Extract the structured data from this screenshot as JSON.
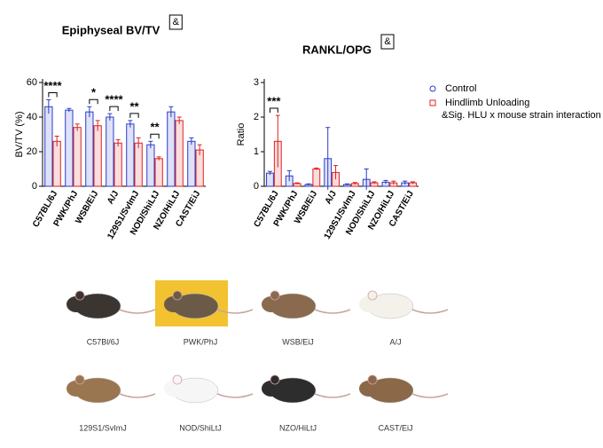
{
  "chart_data": [
    {
      "type": "bar",
      "title": "Epiphyseal BV/TV",
      "marker": "&",
      "y_label": "BV/TV (%)",
      "categories": [
        "C57BL/6J",
        "PWK/PhJ",
        "WSB/EiJ",
        "A/J",
        "129S1/SvImJ",
        "NOD/ShiLtJ",
        "NZO/HiLtJ",
        "CAST/EiJ"
      ],
      "series": [
        {
          "name": "Control",
          "color": "#2a3cc8",
          "values": [
            46,
            44,
            43,
            40,
            36,
            24,
            43,
            26
          ],
          "errors": [
            4,
            1,
            3,
            2,
            2,
            2,
            3,
            2
          ]
        },
        {
          "name": "Hindlimb Unloading",
          "color": "#e02020",
          "values": [
            26,
            34,
            35,
            25,
            25,
            16,
            38,
            21
          ],
          "errors": [
            3,
            2,
            3,
            2,
            3,
            1,
            2,
            3
          ]
        }
      ],
      "significance": [
        "****",
        null,
        "*",
        "****",
        "**",
        "**",
        null,
        null
      ],
      "ylim": [
        0,
        60
      ],
      "yticks": [
        0,
        20,
        40,
        60
      ]
    },
    {
      "type": "bar",
      "title": "RANKL/OPG",
      "marker": "&",
      "y_label": "Ratio",
      "categories": [
        "C57BL/6J",
        "PWK/PhJ",
        "WSB/EiJ",
        "A/J",
        "129S1/SvImJ",
        "NOD/ShiLtJ",
        "NZO/HiLtJ",
        "CAST/EiJ"
      ],
      "series": [
        {
          "name": "Control",
          "color": "#2a3cc8",
          "values": [
            0.38,
            0.3,
            0.05,
            0.8,
            0.05,
            0.2,
            0.12,
            0.1
          ],
          "errors": [
            0.05,
            0.15,
            0.02,
            0.9,
            0.02,
            0.3,
            0.05,
            0.05
          ]
        },
        {
          "name": "Hindlimb Unloading",
          "color": "#e02020",
          "values": [
            1.3,
            0.08,
            0.5,
            0.4,
            0.08,
            0.1,
            0.1,
            0.1
          ],
          "errors": [
            0.75,
            0.02,
            0.03,
            0.2,
            0.03,
            0.03,
            0.05,
            0.03
          ]
        }
      ],
      "significance": [
        "***",
        null,
        null,
        null,
        null,
        null,
        null,
        null
      ],
      "ylim": [
        0,
        3
      ],
      "yticks": [
        0,
        1,
        2,
        3
      ],
      "legend": "right",
      "note": "&Sig. HLU x mouse strain interaction"
    }
  ],
  "images": {
    "captions": [
      "C57Bl/6J",
      "PWK/PhJ",
      "WSB/EiJ",
      "A/J",
      "129S1/SvImJ",
      "NOD/ShiLtJ",
      "NZO/HiLtJ",
      "CAST/EiJ"
    ]
  }
}
